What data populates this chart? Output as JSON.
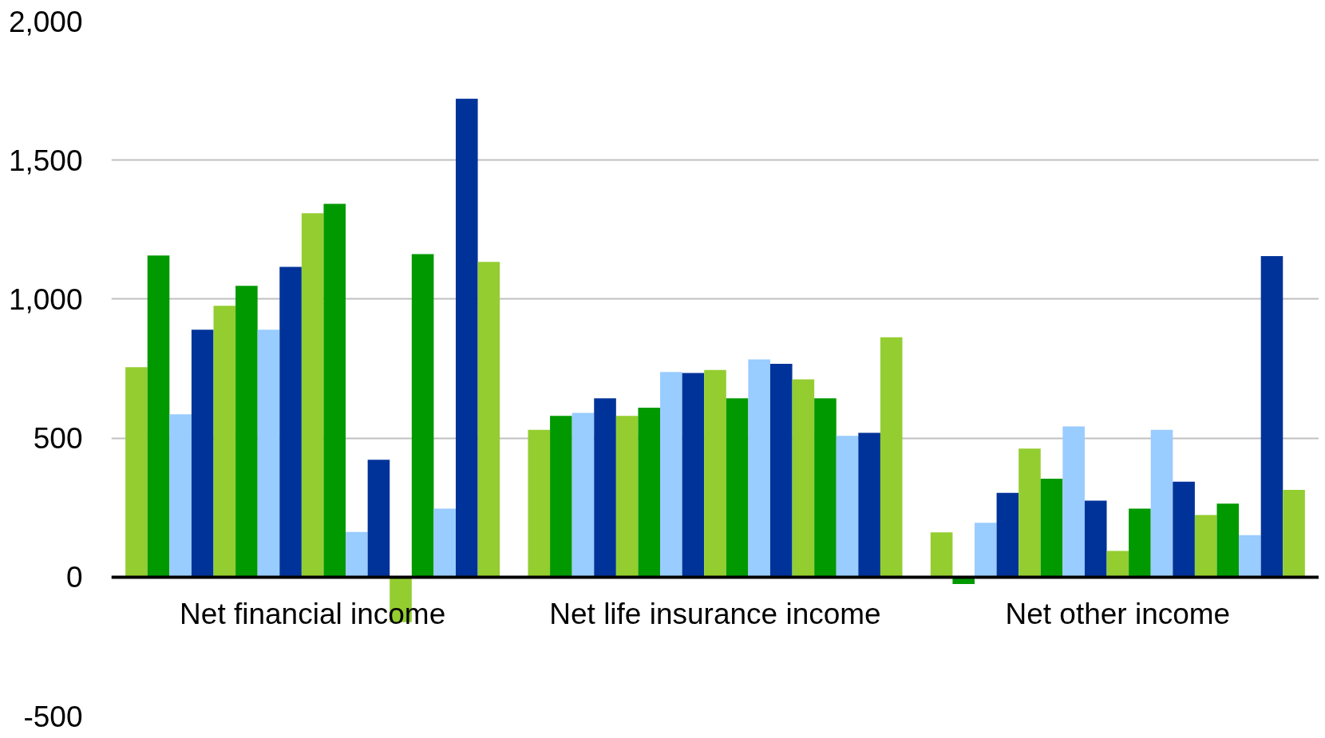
{
  "chart_data": {
    "type": "bar",
    "categories": [
      "Net financial income",
      "Net life insurance income",
      "Net other income"
    ],
    "series": [
      {
        "color": "#94cd30",
        "values": [
          755,
          530,
          161
        ]
      },
      {
        "color": "#009900",
        "values": [
          1157,
          580,
          -25
        ]
      },
      {
        "color": "#99ccff",
        "values": [
          586,
          591,
          195
        ]
      },
      {
        "color": "#003399",
        "values": [
          890,
          643,
          303
        ]
      },
      {
        "color": "#94cd30",
        "values": [
          976,
          580,
          462
        ]
      },
      {
        "color": "#009900",
        "values": [
          1048,
          609,
          354
        ]
      },
      {
        "color": "#99ccff",
        "values": [
          890,
          738,
          542
        ]
      },
      {
        "color": "#003399",
        "values": [
          1116,
          734,
          275
        ]
      },
      {
        "color": "#94cd30",
        "values": [
          1309,
          745,
          94
        ]
      },
      {
        "color": "#009900",
        "values": [
          1343,
          643,
          246
        ]
      },
      {
        "color": "#99ccff",
        "values": [
          162,
          783,
          530
        ]
      },
      {
        "color": "#003399",
        "values": [
          422,
          767,
          343
        ]
      },
      {
        "color": "#94cd30",
        "values": [
          -162,
          711,
          223
        ]
      },
      {
        "color": "#009900",
        "values": [
          1162,
          643,
          264
        ]
      },
      {
        "color": "#99ccff",
        "values": [
          246,
          508,
          151
        ]
      },
      {
        "color": "#003399",
        "values": [
          1721,
          519,
          1155
        ]
      },
      {
        "color": "#94cd30",
        "values": [
          1134,
          863,
          314
        ]
      }
    ],
    "ylim": [
      -500,
      2000
    ],
    "yticks": [
      -500,
      0,
      500,
      {
        "value": 1000,
        "label": "1,000"
      },
      {
        "value": 1500,
        "label": "1,500"
      },
      {
        "value": 2000,
        "label": "2,000"
      }
    ],
    "grid": "y"
  }
}
